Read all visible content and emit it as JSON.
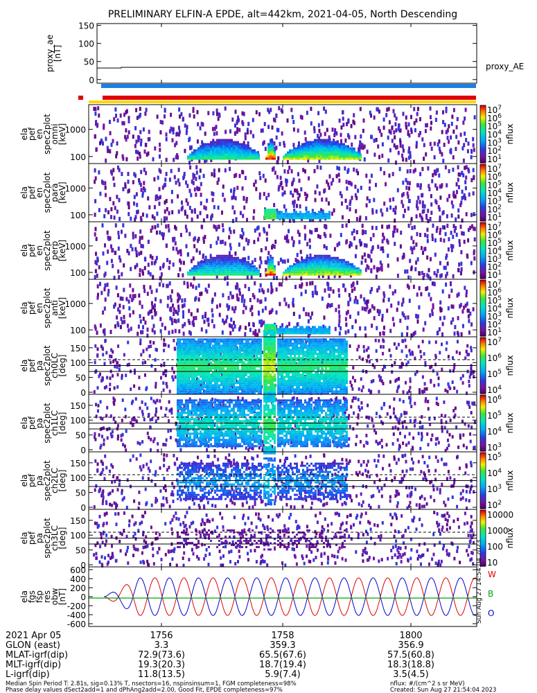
{
  "chart_data": {
    "type": "heatmap",
    "title": "PRELIMINARY ELFIN-A EPDE, alt=442km, 2021-04-05, North Descending",
    "time_ticks": [
      "1756",
      "1758",
      "1800"
    ],
    "panels": [
      {
        "id": "proxy_ae",
        "ylabel": [
          "proxy_ae",
          "[nT]"
        ],
        "yticks": [
          "150",
          "100",
          "50",
          "0"
        ],
        "legend": "proxy_AE",
        "value_nT": 34
      },
      {
        "id": "omni",
        "ylabel": [
          "ela",
          "pef",
          "en",
          "spec2plot",
          "omni",
          "[keV]"
        ],
        "yticks": [
          "1000",
          "100"
        ],
        "zticks": [
          "10^7",
          "10^6",
          "10^5",
          "10^4",
          "10^3",
          "10^2",
          "10^1"
        ],
        "zlabel": "nflux"
      },
      {
        "id": "para",
        "ylabel": [
          "ela",
          "pef",
          "en",
          "spec2plot",
          "para",
          "[keV]"
        ],
        "yticks": [
          "1000",
          "100"
        ],
        "zticks": [
          "10^7",
          "10^6",
          "10^5",
          "10^4",
          "10^3",
          "10^2",
          "10^1"
        ],
        "zlabel": "nflux"
      },
      {
        "id": "perp",
        "ylabel": [
          "ela",
          "pef",
          "en",
          "spec2plot",
          "perp",
          "[keV]"
        ],
        "yticks": [
          "1000",
          "100"
        ],
        "zticks": [
          "10^7",
          "10^6",
          "10^5",
          "10^4",
          "10^3",
          "10^2",
          "10^1"
        ],
        "zlabel": "nflux"
      },
      {
        "id": "anti",
        "ylabel": [
          "ela",
          "pef",
          "en",
          "spec2plot",
          "anti",
          "[keV]"
        ],
        "yticks": [
          "1000",
          "100"
        ],
        "zticks": [
          "10^7",
          "10^6",
          "10^5",
          "10^4",
          "10^3",
          "10^2",
          "10^1"
        ],
        "zlabel": "nflux"
      },
      {
        "id": "ch0LC",
        "ylabel": [
          "ela",
          "pef",
          "pa",
          "spec2plot",
          "ch0LC",
          "[deg]"
        ],
        "yticks": [
          "150",
          "100",
          "50",
          "0"
        ],
        "zticks": [
          "10^7",
          "10^6",
          "10^5",
          "10^4"
        ],
        "zlabel": "nflux"
      },
      {
        "id": "ch1LC",
        "ylabel": [
          "ela",
          "pef",
          "pa",
          "spec2plot",
          "ch1LC",
          "[deg]"
        ],
        "yticks": [
          "150",
          "100",
          "50",
          "0"
        ],
        "zticks": [
          "10^6",
          "10^5",
          "10^4",
          "10^3"
        ],
        "zlabel": "nflux"
      },
      {
        "id": "ch2LC",
        "ylabel": [
          "ela",
          "pef",
          "pa",
          "spec2plot",
          "ch2LC",
          "[deg]"
        ],
        "yticks": [
          "150",
          "100",
          "50",
          "0"
        ],
        "zticks": [
          "10^5",
          "10^4",
          "10^3",
          "10^2"
        ],
        "zlabel": "nflux"
      },
      {
        "id": "ch3LC",
        "ylabel": [
          "ela",
          "pef",
          "pa",
          "spec2plot",
          "ch3LC",
          "[deg]"
        ],
        "yticks": [
          "150",
          "100",
          "50",
          "0"
        ],
        "zticks": [
          "10000",
          "1000",
          "100",
          "10"
        ],
        "zlabel": "nflux"
      },
      {
        "id": "fgs",
        "ylabel": [
          "ela",
          "fgs",
          "fsp",
          "res",
          "obw",
          "[nT]"
        ],
        "yticks": [
          "600",
          "400",
          "200",
          "0",
          "-200",
          "-400",
          "-600"
        ],
        "legend": [
          "W",
          "B",
          "O"
        ]
      }
    ],
    "footer": {
      "rows": [
        {
          "label": "2021 Apr 05",
          "values": [
            "1756",
            "1758",
            "1800"
          ]
        },
        {
          "label": "GLON (east)",
          "values": [
            "3.3",
            "359.3",
            "356.9"
          ]
        },
        {
          "label": "MLAT-igrf(dip)",
          "values": [
            "72.9(73.6)",
            "65.5(67.6)",
            "57.5(60.8)"
          ]
        },
        {
          "label": "MLT-igrf(dip)",
          "values": [
            "19.3(20.3)",
            "18.7(19.4)",
            "18.3(18.8)"
          ]
        },
        {
          "label": "L-igrf(dip)",
          "values": [
            "11.8(13.5)",
            "5.9(7.4)",
            "3.5(4.5)"
          ]
        }
      ],
      "note1": "Median Spin Period T: 2.81s, sig=0.13% T, nsectors=16, nspinsinsum=1, FGM completeness=98%",
      "note2": "Phase delay values dSect2add=1 and dPhAng2add=2.00, Good Fit, EPDE completeness=97%",
      "units_note": "nflux: #/(cm^2 s sr MeV)",
      "created": "Created: Sun Aug 27 21:54:04 2023",
      "side_stamp": "Sun Aug 27 14:54:04 2023"
    }
  }
}
